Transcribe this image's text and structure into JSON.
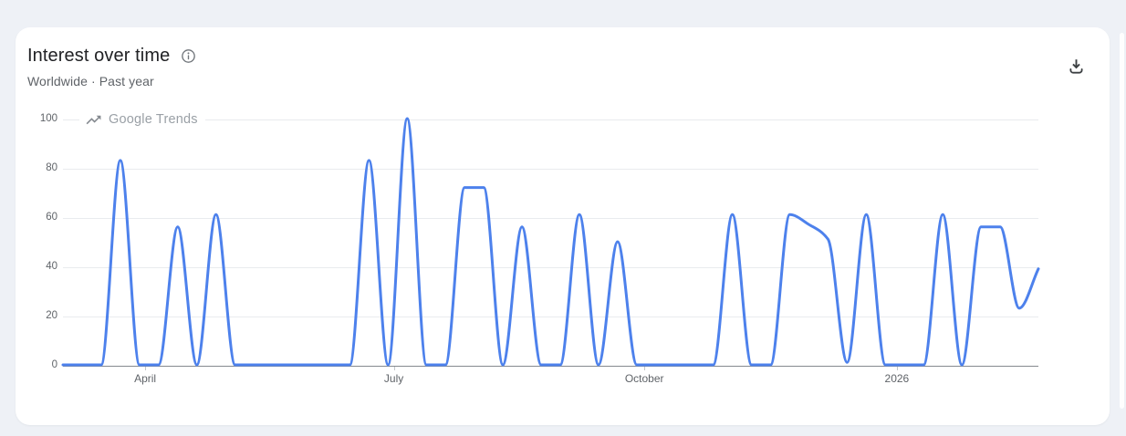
{
  "page": {
    "background_color": "#eef1f6"
  },
  "card": {
    "title": "Interest over time",
    "subtitle": "Worldwide · Past year",
    "icons": {
      "title_info": "info-icon",
      "header_action": "download-icon",
      "watermark": "trending-up-icon"
    }
  },
  "watermark": {
    "label": "Google Trends"
  },
  "chart_data": {
    "type": "line",
    "title": "Interest over time",
    "x_unit": "weeks (past year)",
    "series": [
      {
        "name": "Interest",
        "values": [
          0,
          0,
          0,
          83,
          0,
          0,
          56,
          0,
          61,
          0,
          0,
          0,
          0,
          0,
          0,
          0,
          83,
          0,
          100,
          0,
          0,
          72,
          72,
          0,
          56,
          0,
          0,
          61,
          0,
          50,
          0,
          0,
          0,
          0,
          0,
          61,
          0,
          0,
          61,
          57,
          51,
          1,
          61,
          0,
          0,
          0,
          61,
          0,
          56,
          56,
          23,
          39
        ]
      }
    ],
    "ylim": [
      0,
      100
    ],
    "yticks": [
      0,
      20,
      40,
      60,
      80,
      100
    ],
    "xticks": [
      {
        "label": "April",
        "week": 4.3
      },
      {
        "label": "July",
        "week": 17.3
      },
      {
        "label": "October",
        "week": 30.4
      },
      {
        "label": "2026",
        "week": 43.6
      }
    ],
    "grid": true,
    "legend": false,
    "smoothing": "monotone",
    "line_color": "#4d81ec"
  }
}
